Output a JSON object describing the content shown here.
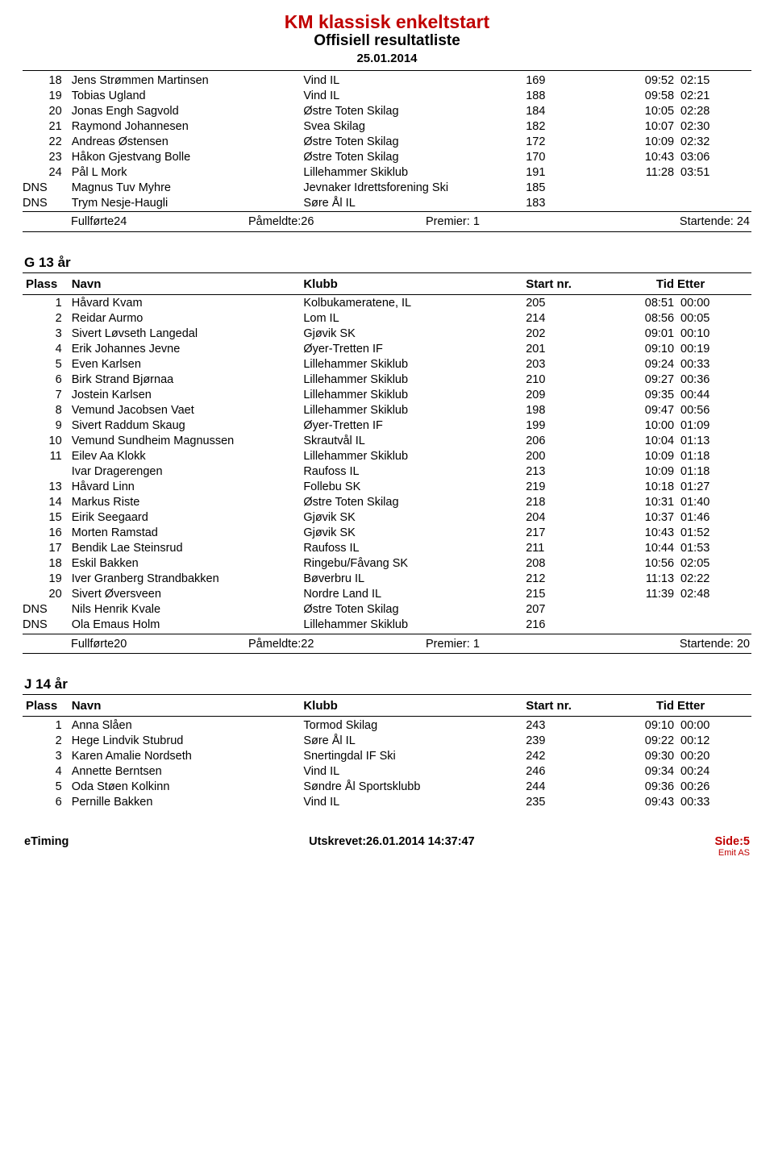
{
  "header": {
    "title": "KM klassisk enkeltstart",
    "subtitle": "Offisiell resultatliste",
    "date": "25.01.2014"
  },
  "labels": {
    "plass": "Plass",
    "navn": "Navn",
    "klubb": "Klubb",
    "startnr": "Start nr.",
    "tid": "Tid",
    "etter": "Etter"
  },
  "top_block": {
    "rows": [
      {
        "pl": "18",
        "navn": "Jens Strømmen Martinsen",
        "klubb": "Vind IL",
        "nr": "169",
        "tid": "09:52",
        "etter": "02:15"
      },
      {
        "pl": "19",
        "navn": "Tobias Ugland",
        "klubb": "Vind IL",
        "nr": "188",
        "tid": "09:58",
        "etter": "02:21"
      },
      {
        "pl": "20",
        "navn": "Jonas Engh Sagvold",
        "klubb": "Østre Toten Skilag",
        "nr": "184",
        "tid": "10:05",
        "etter": "02:28"
      },
      {
        "pl": "21",
        "navn": "Raymond Johannesen",
        "klubb": "Svea Skilag",
        "nr": "182",
        "tid": "10:07",
        "etter": "02:30"
      },
      {
        "pl": "22",
        "navn": "Andreas Østensen",
        "klubb": "Østre Toten Skilag",
        "nr": "172",
        "tid": "10:09",
        "etter": "02:32"
      },
      {
        "pl": "23",
        "navn": "Håkon Gjestvang Bolle",
        "klubb": "Østre Toten Skilag",
        "nr": "170",
        "tid": "10:43",
        "etter": "03:06"
      },
      {
        "pl": "24",
        "navn": "Pål L Mork",
        "klubb": "Lillehammer Skiklub",
        "nr": "191",
        "tid": "11:28",
        "etter": "03:51"
      },
      {
        "pl": "DNS",
        "navn": "Magnus Tuv Myhre",
        "klubb": "Jevnaker Idrettsforening Ski",
        "nr": "185",
        "tid": "",
        "etter": ""
      },
      {
        "pl": "DNS",
        "navn": "Trym Nesje-Haugli",
        "klubb": "Søre Ål IL",
        "nr": "183",
        "tid": "",
        "etter": ""
      }
    ],
    "summary": {
      "full": "Fullførte24",
      "pam": "Påmeldte:26",
      "prem": "Premier: 1",
      "start": "Startende: 24"
    }
  },
  "g13": {
    "title": "G 13 år",
    "rows": [
      {
        "pl": "1",
        "navn": "Håvard Kvam",
        "klubb": "Kolbukameratene, IL",
        "nr": "205",
        "tid": "08:51",
        "etter": "00:00"
      },
      {
        "pl": "2",
        "navn": "Reidar Aurmo",
        "klubb": "Lom IL",
        "nr": "214",
        "tid": "08:56",
        "etter": "00:05"
      },
      {
        "pl": "3",
        "navn": "Sivert Løvseth Langedal",
        "klubb": "Gjøvik SK",
        "nr": "202",
        "tid": "09:01",
        "etter": "00:10"
      },
      {
        "pl": "4",
        "navn": "Erik Johannes Jevne",
        "klubb": "Øyer-Tretten IF",
        "nr": "201",
        "tid": "09:10",
        "etter": "00:19"
      },
      {
        "pl": "5",
        "navn": "Even Karlsen",
        "klubb": "Lillehammer Skiklub",
        "nr": "203",
        "tid": "09:24",
        "etter": "00:33"
      },
      {
        "pl": "6",
        "navn": "Birk Strand Bjørnaa",
        "klubb": "Lillehammer Skiklub",
        "nr": "210",
        "tid": "09:27",
        "etter": "00:36"
      },
      {
        "pl": "7",
        "navn": "Jostein Karlsen",
        "klubb": "Lillehammer Skiklub",
        "nr": "209",
        "tid": "09:35",
        "etter": "00:44"
      },
      {
        "pl": "8",
        "navn": "Vemund Jacobsen Vaet",
        "klubb": "Lillehammer Skiklub",
        "nr": "198",
        "tid": "09:47",
        "etter": "00:56"
      },
      {
        "pl": "9",
        "navn": "Sivert Raddum Skaug",
        "klubb": "Øyer-Tretten IF",
        "nr": "199",
        "tid": "10:00",
        "etter": "01:09"
      },
      {
        "pl": "10",
        "navn": "Vemund Sundheim Magnussen",
        "klubb": "Skrautvål IL",
        "nr": "206",
        "tid": "10:04",
        "etter": "01:13"
      },
      {
        "pl": "11",
        "navn": "Eilev Aa Klokk",
        "klubb": "Lillehammer Skiklub",
        "nr": "200",
        "tid": "10:09",
        "etter": "01:18"
      },
      {
        "pl": "",
        "navn": "Ivar Dragerengen",
        "klubb": "Raufoss IL",
        "nr": "213",
        "tid": "10:09",
        "etter": "01:18"
      },
      {
        "pl": "13",
        "navn": "Håvard Linn",
        "klubb": "Follebu SK",
        "nr": "219",
        "tid": "10:18",
        "etter": "01:27"
      },
      {
        "pl": "14",
        "navn": "Markus Riste",
        "klubb": "Østre Toten Skilag",
        "nr": "218",
        "tid": "10:31",
        "etter": "01:40"
      },
      {
        "pl": "15",
        "navn": "Eirik Seegaard",
        "klubb": "Gjøvik SK",
        "nr": "204",
        "tid": "10:37",
        "etter": "01:46"
      },
      {
        "pl": "16",
        "navn": "Morten Ramstad",
        "klubb": "Gjøvik SK",
        "nr": "217",
        "tid": "10:43",
        "etter": "01:52"
      },
      {
        "pl": "17",
        "navn": "Bendik Lae Steinsrud",
        "klubb": "Raufoss IL",
        "nr": "211",
        "tid": "10:44",
        "etter": "01:53"
      },
      {
        "pl": "18",
        "navn": "Eskil Bakken",
        "klubb": "Ringebu/Fåvang SK",
        "nr": "208",
        "tid": "10:56",
        "etter": "02:05"
      },
      {
        "pl": "19",
        "navn": "Iver Granberg Strandbakken",
        "klubb": "Bøverbru IL",
        "nr": "212",
        "tid": "11:13",
        "etter": "02:22"
      },
      {
        "pl": "20",
        "navn": "Sivert Øversveen",
        "klubb": "Nordre Land IL",
        "nr": "215",
        "tid": "11:39",
        "etter": "02:48"
      },
      {
        "pl": "DNS",
        "navn": "Nils Henrik Kvale",
        "klubb": "Østre Toten Skilag",
        "nr": "207",
        "tid": "",
        "etter": ""
      },
      {
        "pl": "DNS",
        "navn": "Ola Emaus Holm",
        "klubb": "Lillehammer Skiklub",
        "nr": "216",
        "tid": "",
        "etter": ""
      }
    ],
    "summary": {
      "full": "Fullførte20",
      "pam": "Påmeldte:22",
      "prem": "Premier: 1",
      "start": "Startende: 20"
    }
  },
  "j14": {
    "title": "J 14 år",
    "rows": [
      {
        "pl": "1",
        "navn": "Anna Slåen",
        "klubb": "Tormod Skilag",
        "nr": "243",
        "tid": "09:10",
        "etter": "00:00"
      },
      {
        "pl": "2",
        "navn": "Hege Lindvik Stubrud",
        "klubb": "Søre Ål IL",
        "nr": "239",
        "tid": "09:22",
        "etter": "00:12"
      },
      {
        "pl": "3",
        "navn": "Karen Amalie Nordseth",
        "klubb": "Snertingdal IF Ski",
        "nr": "242",
        "tid": "09:30",
        "etter": "00:20"
      },
      {
        "pl": "4",
        "navn": "Annette Berntsen",
        "klubb": "Vind IL",
        "nr": "246",
        "tid": "09:34",
        "etter": "00:24"
      },
      {
        "pl": "5",
        "navn": "Oda Støen Kolkinn",
        "klubb": "Søndre Ål Sportsklubb",
        "nr": "244",
        "tid": "09:36",
        "etter": "00:26"
      },
      {
        "pl": "6",
        "navn": "Pernille Bakken",
        "klubb": "Vind IL",
        "nr": "235",
        "tid": "09:43",
        "etter": "00:33"
      }
    ]
  },
  "footer": {
    "left": "eTiming",
    "center": "Utskrevet:26.01.2014 14:37:47",
    "right": "Side:5",
    "emit": "Emit AS"
  }
}
